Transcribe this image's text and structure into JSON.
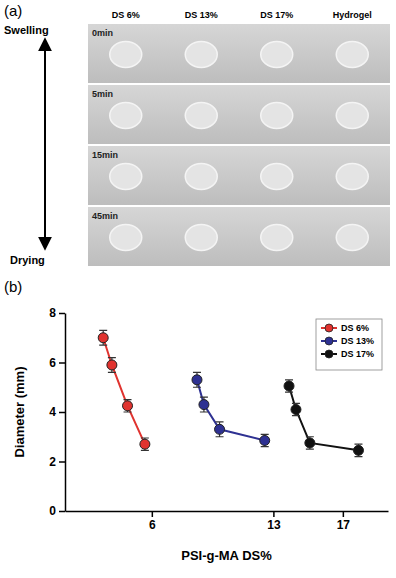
{
  "panel_a": {
    "label": "(a)",
    "columns": [
      "DS 6%",
      "DS 13%",
      "DS 17%",
      "Hydrogel"
    ],
    "rows": [
      "0min",
      "5min",
      "15min",
      "45min"
    ],
    "arrow_top": "Swelling",
    "arrow_bottom": "Drying"
  },
  "chart_data": {
    "type": "line",
    "annotations": [
      "(b)"
    ],
    "x_label": "PSI-g-MA DS%",
    "y_label": "Diameter (mm)",
    "xlim": [
      1,
      19.6
    ],
    "xticks": [
      6,
      13,
      17
    ],
    "ylim": [
      0,
      8
    ],
    "yticks": [
      0,
      2,
      4,
      6,
      8
    ],
    "legend": "upper right",
    "marker": "circle",
    "series": [
      {
        "name": "DS 6%",
        "color": "#e0332f",
        "x": [
          3.2,
          3.7,
          4.6,
          5.6
        ],
        "values": [
          7.0,
          5.9,
          4.25,
          2.7
        ],
        "errors": [
          0.3,
          0.3,
          0.25,
          0.25
        ]
      },
      {
        "name": "DS 13%",
        "color": "#2e3192",
        "x": [
          8.6,
          9.0,
          9.9,
          12.5
        ],
        "values": [
          5.3,
          4.3,
          3.3,
          2.85
        ],
        "errors": [
          0.3,
          0.3,
          0.3,
          0.25
        ]
      },
      {
        "name": "DS 17%",
        "color": "#111111",
        "x": [
          13.9,
          14.3,
          15.1,
          17.9
        ],
        "values": [
          5.05,
          4.1,
          2.75,
          2.45
        ],
        "errors": [
          0.25,
          0.25,
          0.25,
          0.25
        ]
      }
    ]
  }
}
